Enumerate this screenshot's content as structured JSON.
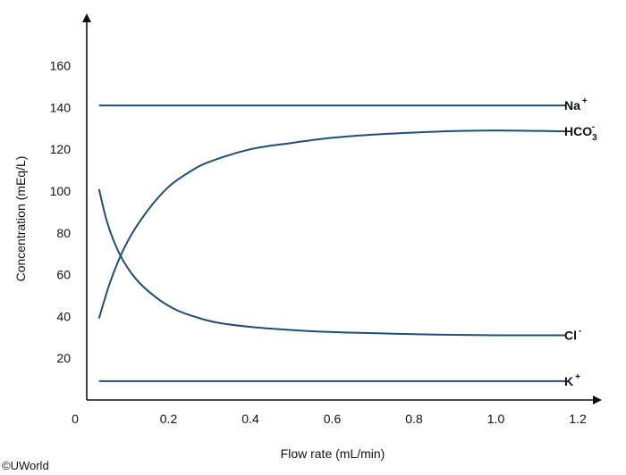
{
  "chart_data": {
    "type": "line",
    "xlabel": "Flow rate (mL/min)",
    "ylabel": "Concentration (mEq/L)",
    "xlim": [
      0,
      1.2
    ],
    "ylim": [
      0,
      175
    ],
    "x_ticks": [
      {
        "value": 0,
        "label": "0"
      },
      {
        "value": 0.2,
        "label": "0.2"
      },
      {
        "value": 0.4,
        "label": "0.4"
      },
      {
        "value": 0.6,
        "label": "0.6"
      },
      {
        "value": 0.8,
        "label": "0.8"
      },
      {
        "value": 1.0,
        "label": "1.0"
      },
      {
        "value": 1.2,
        "label": "1.2"
      }
    ],
    "y_ticks": [
      {
        "value": 20,
        "label": "20"
      },
      {
        "value": 40,
        "label": "40"
      },
      {
        "value": 60,
        "label": "60"
      },
      {
        "value": 80,
        "label": "80"
      },
      {
        "value": 100,
        "label": "100"
      },
      {
        "value": 120,
        "label": "120"
      },
      {
        "value": 140,
        "label": "140"
      },
      {
        "value": 160,
        "label": "160"
      }
    ],
    "grid": false,
    "series": [
      {
        "name": "Na",
        "sup": "+",
        "sub": "",
        "color": "#1f4e79",
        "x": [
          0.03,
          1.17
        ],
        "y": [
          141,
          141
        ]
      },
      {
        "name": "HCO",
        "sup": "-",
        "sub": "3",
        "color": "#1f4e79",
        "x": [
          0.03,
          0.06,
          0.1,
          0.15,
          0.2,
          0.25,
          0.3,
          0.4,
          0.5,
          0.6,
          0.7,
          0.8,
          0.9,
          1.0,
          1.1,
          1.17
        ],
        "y": [
          39,
          58,
          76,
          91,
          102,
          109,
          114,
          120,
          123,
          125.5,
          127,
          128,
          128.7,
          129,
          128.8,
          128.6
        ]
      },
      {
        "name": "Cl",
        "sup": "-",
        "sub": "",
        "color": "#1f4e79",
        "x": [
          0.03,
          0.05,
          0.08,
          0.12,
          0.17,
          0.22,
          0.27,
          0.32,
          0.4,
          0.5,
          0.6,
          0.7,
          0.8,
          0.9,
          1.0,
          1.1,
          1.17
        ],
        "y": [
          101,
          85,
          70,
          58,
          49,
          43,
          39.5,
          37,
          35,
          33.5,
          32.5,
          32,
          31.5,
          31.2,
          31,
          31,
          31
        ]
      },
      {
        "name": "K",
        "sup": "+",
        "sub": "",
        "color": "#1f4e79",
        "x": [
          0.03,
          1.17
        ],
        "y": [
          9,
          9
        ]
      }
    ]
  },
  "credit": "©UWorld"
}
